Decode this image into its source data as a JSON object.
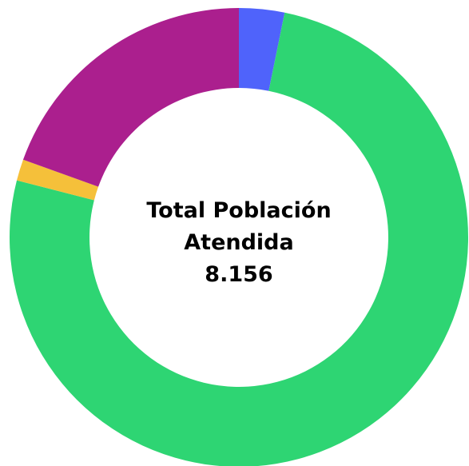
{
  "chart_data": {
    "type": "pie",
    "variant": "donut",
    "center_text": {
      "line1": "Total Población",
      "line2": "Atendida",
      "value": "8.156"
    },
    "slices": [
      {
        "value": 3.2,
        "color": "#4f63fb"
      },
      {
        "value": 75.8,
        "color": "#2ed573"
      },
      {
        "value": 1.5,
        "color": "#f5c03a"
      },
      {
        "value": 19.5,
        "color": "#ab1f8e"
      }
    ],
    "start_angle_deg": 0,
    "direction": "clockwise"
  }
}
